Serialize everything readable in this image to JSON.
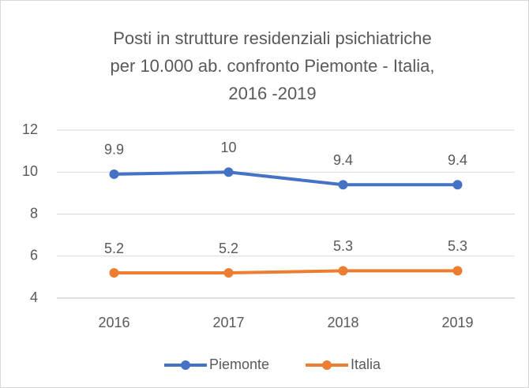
{
  "chart_data": {
    "type": "line",
    "title": [
      "Posti in strutture residenziali psichiatriche",
      "per 10.000 ab. confronto Piemonte - Italia,",
      "2016 -2019"
    ],
    "categories": [
      "2016",
      "2017",
      "2018",
      "2019"
    ],
    "series": [
      {
        "name": "Piemonte",
        "color": "#4472c4",
        "values": [
          9.9,
          10,
          9.4,
          9.4
        ]
      },
      {
        "name": "Italia",
        "color": "#ed7d31",
        "values": [
          5.2,
          5.2,
          5.3,
          5.3
        ]
      }
    ],
    "ylim": [
      4,
      12
    ],
    "yticks": [
      4,
      6,
      8,
      10,
      12
    ],
    "grid": true,
    "legend": "bottom"
  }
}
